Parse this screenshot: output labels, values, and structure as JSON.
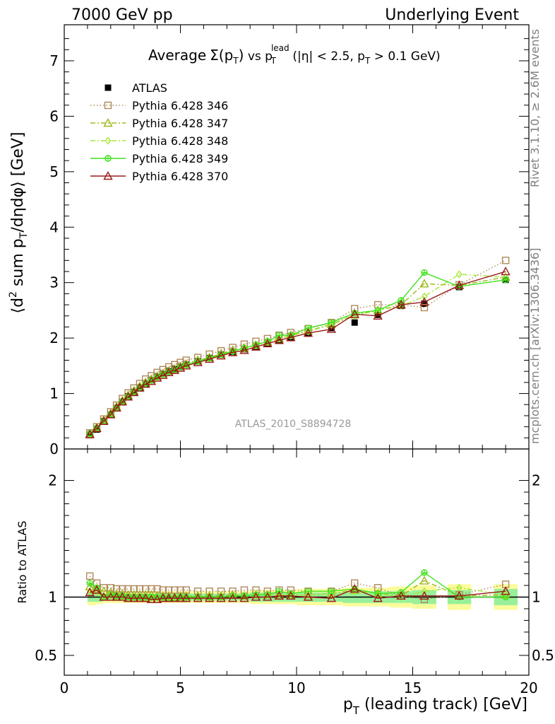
{
  "header": {
    "left": "7000 GeV pp",
    "right": "Underlying Event"
  },
  "side_labels": {
    "rivet": "Rivet 3.1.10, ≥ 2.6M events",
    "mcplots": "mcplots.cern.ch [arXiv:1306.3436]"
  },
  "plot_title": {
    "prefix": "Average",
    "sigma": "Σ(p",
    "sub_t": "T",
    "close": ")",
    "vs": " vs p",
    "lead": "lead",
    "lead_t": "T",
    "cuts": " (|η| < 2.5, p",
    "cuts_t": "T",
    "cuts_end": " > 0.1 GeV)"
  },
  "watermark": "ATLAS_2010_S8894728",
  "chart_data": [
    {
      "type": "scatter",
      "panel": "main",
      "ylabel": "⟨d² sum pT/dηdφ⟩ [GeV]",
      "ylabel_parts": {
        "a": "⟨d",
        "sup": "2",
        "b": " sum p",
        "sub": "T",
        "c": "/dηdφ⟩ [GeV]"
      },
      "xlabel": "pT (leading track) [GeV]",
      "xlabel_parts": {
        "a": "p",
        "sub": "T",
        "b": " (leading track) [GeV]"
      },
      "xlim": [
        0,
        20
      ],
      "ylim": [
        0,
        7.65
      ],
      "x_ticks": [
        "0",
        "5",
        "10",
        "15",
        "20"
      ],
      "y_ticks": [
        "0",
        "1",
        "2",
        "3",
        "4",
        "5",
        "6",
        "7"
      ],
      "legend_position": "top-left",
      "x": [
        1.1,
        1.4,
        1.7,
        2.0,
        2.25,
        2.5,
        2.75,
        3.0,
        3.25,
        3.5,
        3.75,
        4.0,
        4.25,
        4.5,
        4.75,
        5.0,
        5.25,
        5.75,
        6.25,
        6.75,
        7.25,
        7.75,
        8.25,
        8.75,
        9.25,
        9.75,
        10.5,
        11.5,
        12.5,
        13.5,
        14.5,
        15.5,
        17.0,
        19.0
      ],
      "series": [
        {
          "name": "ATLAS",
          "color": "#000000",
          "marker": "square-filled",
          "line": "none",
          "values": [
            0.25,
            0.35,
            0.5,
            0.62,
            0.74,
            0.85,
            0.95,
            1.03,
            1.11,
            1.18,
            1.24,
            1.3,
            1.35,
            1.4,
            1.44,
            1.48,
            1.52,
            1.58,
            1.64,
            1.7,
            1.75,
            1.8,
            1.84,
            1.9,
            1.95,
            2.0,
            2.08,
            2.18,
            2.28,
            2.42,
            2.58,
            2.62,
            2.92,
            3.05
          ]
        },
        {
          "name": "Pythia 6.428 346",
          "color": "#b0895a",
          "marker": "square-open",
          "line": "dotted",
          "values": [
            0.29,
            0.4,
            0.54,
            0.67,
            0.79,
            0.91,
            1.01,
            1.1,
            1.18,
            1.26,
            1.32,
            1.38,
            1.43,
            1.48,
            1.52,
            1.56,
            1.6,
            1.65,
            1.71,
            1.77,
            1.83,
            1.89,
            1.94,
            1.99,
            2.05,
            2.1,
            2.17,
            2.28,
            2.53,
            2.6,
            2.6,
            2.55,
            2.96,
            3.4
          ]
        },
        {
          "name": "Pythia 6.428 347",
          "color": "#9fb81e",
          "marker": "triangle-open",
          "line": "dash-dot",
          "values": [
            0.27,
            0.38,
            0.52,
            0.64,
            0.76,
            0.87,
            0.97,
            1.05,
            1.13,
            1.2,
            1.26,
            1.31,
            1.36,
            1.41,
            1.44,
            1.49,
            1.53,
            1.6,
            1.65,
            1.72,
            1.78,
            1.82,
            1.87,
            1.93,
            1.99,
            2.05,
            2.13,
            2.25,
            2.42,
            2.5,
            2.6,
            2.98,
            2.95,
            3.1
          ]
        },
        {
          "name": "Pythia 6.428 348",
          "color": "#a8e83a",
          "marker": "diamond-open",
          "line": "dash-dot",
          "values": [
            0.26,
            0.37,
            0.5,
            0.63,
            0.74,
            0.85,
            0.94,
            1.02,
            1.1,
            1.17,
            1.23,
            1.29,
            1.34,
            1.39,
            1.42,
            1.47,
            1.51,
            1.58,
            1.63,
            1.7,
            1.76,
            1.81,
            1.87,
            1.93,
            1.99,
            2.04,
            2.12,
            2.24,
            2.4,
            2.5,
            2.58,
            2.75,
            3.15,
            3.1
          ]
        },
        {
          "name": "Pythia 6.428 349",
          "color": "#3ee21a",
          "marker": "circle-cross",
          "line": "solid",
          "values": [
            0.28,
            0.38,
            0.5,
            0.63,
            0.75,
            0.86,
            0.95,
            1.03,
            1.11,
            1.18,
            1.24,
            1.3,
            1.35,
            1.39,
            1.43,
            1.48,
            1.52,
            1.58,
            1.64,
            1.7,
            1.76,
            1.82,
            1.88,
            1.94,
            2.05,
            2.05,
            2.18,
            2.28,
            2.45,
            2.5,
            2.68,
            3.18,
            2.93,
            3.05
          ]
        },
        {
          "name": "Pythia 6.428 370",
          "color": "#9b1b1b",
          "marker": "triangle-open",
          "line": "solid",
          "values": [
            0.26,
            0.37,
            0.5,
            0.62,
            0.74,
            0.85,
            0.94,
            1.02,
            1.1,
            1.17,
            1.22,
            1.28,
            1.33,
            1.38,
            1.42,
            1.46,
            1.5,
            1.56,
            1.62,
            1.68,
            1.74,
            1.78,
            1.84,
            1.9,
            1.96,
            2.01,
            2.09,
            2.16,
            2.43,
            2.4,
            2.6,
            2.65,
            2.95,
            3.2
          ]
        }
      ]
    },
    {
      "type": "scatter",
      "panel": "ratio",
      "ylabel": "Ratio to ATLAS",
      "xlabel": "pT (leading track) [GeV]",
      "xlim": [
        0,
        20
      ],
      "ylim": [
        0.33,
        2.27
      ],
      "y_ticks": [
        "0.5",
        "1",
        "2"
      ],
      "reference_line": 1,
      "band_colors": {
        "outer": "#fbfc9b",
        "inner": "#9af09a"
      },
      "x": [
        1.1,
        1.4,
        1.7,
        2.0,
        2.25,
        2.5,
        2.75,
        3.0,
        3.25,
        3.5,
        3.75,
        4.0,
        4.25,
        4.5,
        4.75,
        5.0,
        5.25,
        5.75,
        6.25,
        6.75,
        7.25,
        7.75,
        8.25,
        8.75,
        9.25,
        9.75,
        10.5,
        11.5,
        12.5,
        13.5,
        14.5,
        15.5,
        17.0,
        19.0
      ],
      "series": [
        {
          "name": "Pythia 6.428 346",
          "values": [
            1.18,
            1.12,
            1.08,
            1.08,
            1.07,
            1.07,
            1.07,
            1.07,
            1.07,
            1.07,
            1.07,
            1.07,
            1.06,
            1.06,
            1.06,
            1.06,
            1.06,
            1.05,
            1.05,
            1.05,
            1.05,
            1.06,
            1.06,
            1.05,
            1.06,
            1.06,
            1.05,
            1.05,
            1.12,
            1.08,
            1.01,
            0.98,
            1.02,
            1.11
          ]
        },
        {
          "name": "Pythia 6.428 347",
          "values": [
            1.09,
            1.07,
            1.05,
            1.04,
            1.03,
            1.03,
            1.02,
            1.02,
            1.02,
            1.02,
            1.02,
            1.01,
            1.01,
            1.01,
            1.0,
            1.01,
            1.01,
            1.01,
            1.01,
            1.01,
            1.02,
            1.01,
            1.02,
            1.02,
            1.02,
            1.02,
            1.02,
            1.03,
            1.06,
            1.03,
            1.01,
            1.14,
            1.01,
            1.02
          ]
        },
        {
          "name": "Pythia 6.428 348",
          "values": [
            1.05,
            1.04,
            1.0,
            1.01,
            1.0,
            1.0,
            0.99,
            0.99,
            0.99,
            0.99,
            0.99,
            0.99,
            0.99,
            0.99,
            0.99,
            0.99,
            0.99,
            1.0,
            0.99,
            1.0,
            1.01,
            1.01,
            1.02,
            1.02,
            1.02,
            1.02,
            1.02,
            1.03,
            1.05,
            1.03,
            1.0,
            1.05,
            1.08,
            1.02
          ]
        },
        {
          "name": "Pythia 6.428 349",
          "values": [
            1.12,
            1.08,
            1.0,
            1.02,
            1.01,
            1.01,
            1.0,
            1.0,
            1.0,
            1.0,
            1.0,
            1.0,
            1.0,
            0.99,
            0.99,
            1.0,
            1.0,
            1.0,
            1.0,
            1.0,
            1.01,
            1.01,
            1.02,
            1.02,
            1.05,
            1.03,
            1.05,
            1.05,
            1.07,
            1.03,
            1.04,
            1.21,
            1.0,
            1.0
          ]
        },
        {
          "name": "Pythia 6.428 370",
          "values": [
            1.04,
            1.06,
            1.0,
            1.0,
            1.0,
            1.0,
            0.99,
            0.99,
            0.99,
            0.99,
            0.98,
            0.98,
            0.99,
            0.99,
            0.99,
            0.99,
            0.99,
            0.99,
            0.99,
            0.99,
            0.99,
            0.99,
            1.0,
            1.0,
            1.01,
            1.01,
            1.0,
            0.99,
            1.07,
            0.99,
            1.01,
            1.01,
            1.01,
            1.05
          ]
        }
      ],
      "bands": {
        "outer_half_width": [
          0.07,
          0.06,
          0.05,
          0.05,
          0.05,
          0.05,
          0.05,
          0.05,
          0.05,
          0.05,
          0.05,
          0.05,
          0.05,
          0.05,
          0.05,
          0.05,
          0.05,
          0.05,
          0.05,
          0.05,
          0.05,
          0.05,
          0.06,
          0.06,
          0.06,
          0.06,
          0.07,
          0.07,
          0.08,
          0.08,
          0.09,
          0.1,
          0.11,
          0.11
        ],
        "inner_half_width": [
          0.04,
          0.04,
          0.03,
          0.03,
          0.03,
          0.03,
          0.03,
          0.03,
          0.03,
          0.03,
          0.03,
          0.03,
          0.03,
          0.03,
          0.03,
          0.03,
          0.03,
          0.03,
          0.03,
          0.03,
          0.03,
          0.03,
          0.04,
          0.04,
          0.04,
          0.04,
          0.04,
          0.04,
          0.05,
          0.05,
          0.05,
          0.06,
          0.06,
          0.07
        ]
      }
    }
  ]
}
